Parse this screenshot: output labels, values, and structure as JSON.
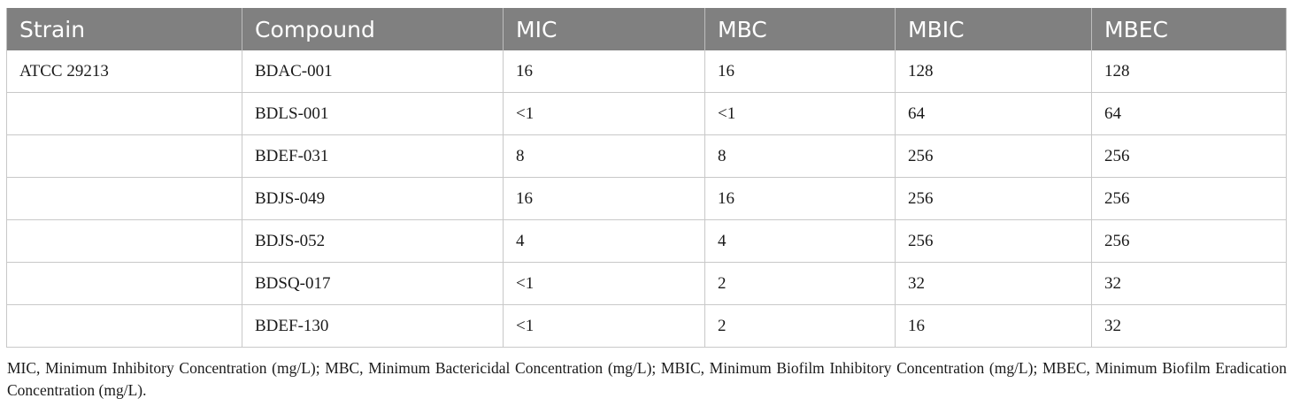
{
  "table": {
    "columns": [
      "Strain",
      "Compound",
      "MIC",
      "MBC",
      "MBIC",
      "MBEC"
    ],
    "rows": [
      [
        "ATCC 29213",
        "BDAC-001",
        "16",
        "16",
        "128",
        "128"
      ],
      [
        "",
        "BDLS-001",
        "<1",
        "<1",
        "64",
        "64"
      ],
      [
        "",
        "BDEF-031",
        "8",
        "8",
        "256",
        "256"
      ],
      [
        "",
        "BDJS-049",
        "16",
        "16",
        "256",
        "256"
      ],
      [
        "",
        "BDJS-052",
        "4",
        "4",
        "256",
        "256"
      ],
      [
        "",
        "BDSQ-017",
        "<1",
        "2",
        "32",
        "32"
      ],
      [
        "",
        "BDEF-130",
        "<1",
        "2",
        "16",
        "32"
      ]
    ]
  },
  "footnote": "MIC, Minimum Inhibitory Concentration (mg/L); MBC, Minimum Bactericidal Concentration (mg/L); MBIC, Minimum Biofilm Inhibitory Concentration (mg/L); MBEC, Minimum Biofilm Eradication Concentration (mg/L).",
  "colors": {
    "header_bg": "#808080",
    "header_text": "#ffffff",
    "grid": "#c8c8c8"
  }
}
